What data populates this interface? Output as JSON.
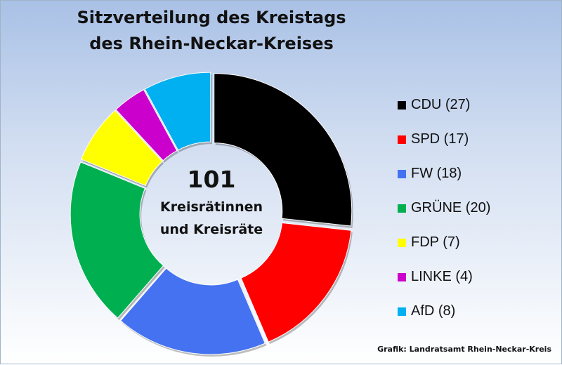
{
  "title_lines": [
    "Sitzverteilung des Kreistags",
    "des Rhein-Neckar-Kreises"
  ],
  "center": {
    "number": "101",
    "line1": "Kreisrätinnen",
    "line2": "und Kreisräte"
  },
  "source": "Grafik: Landratsamt  Rhein-Neckar-Kreis",
  "chart_data": {
    "type": "pie",
    "donut": true,
    "total": 101,
    "title": "Sitzverteilung des Kreistags des Rhein-Neckar-Kreises",
    "legend_position": "right",
    "slices": [
      {
        "label": "CDU",
        "value": 27,
        "legend": "CDU (27)",
        "color": "#000000"
      },
      {
        "label": "SPD",
        "value": 17,
        "legend": "SPD (17)",
        "color": "#ff0000"
      },
      {
        "label": "FW",
        "value": 18,
        "legend": "FW (18)",
        "color": "#4472f0"
      },
      {
        "label": "GRÜNE",
        "value": 20,
        "legend": "GRÜNE (20)",
        "color": "#00b050"
      },
      {
        "label": "FDP",
        "value": 7,
        "legend": "FDP (7)",
        "color": "#ffff00"
      },
      {
        "label": "LINKE",
        "value": 4,
        "legend": "LINKE (4)",
        "color": "#cc00cc"
      },
      {
        "label": "AfD",
        "value": 8,
        "legend": "AfD (8)",
        "color": "#00b0f0"
      }
    ]
  }
}
